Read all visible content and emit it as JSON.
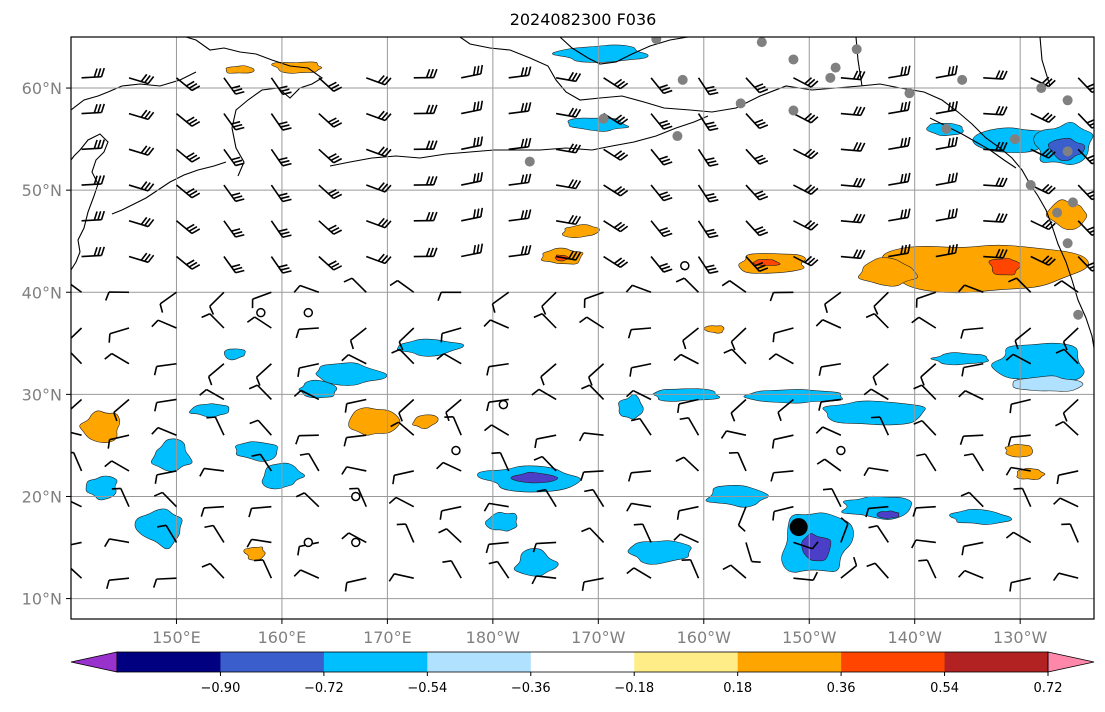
{
  "title": "2024082300 F036",
  "map": {
    "lat_range": [
      8,
      65
    ],
    "lon_range": [
      140,
      237
    ],
    "lat_ticks": [
      {
        "value": 10,
        "label": "10°N"
      },
      {
        "value": 20,
        "label": "20°N"
      },
      {
        "value": 30,
        "label": "30°N"
      },
      {
        "value": 40,
        "label": "40°N"
      },
      {
        "value": 50,
        "label": "50°N"
      },
      {
        "value": 60,
        "label": "60°N"
      }
    ],
    "lon_ticks": [
      {
        "value": 150,
        "label": "150°E"
      },
      {
        "value": 160,
        "label": "160°E"
      },
      {
        "value": 170,
        "label": "170°E"
      },
      {
        "value": 180,
        "label": "180°W"
      },
      {
        "value": 190,
        "label": "170°W"
      },
      {
        "value": 200,
        "label": "160°W"
      },
      {
        "value": 210,
        "label": "150°W"
      },
      {
        "value": 220,
        "label": "140°W"
      },
      {
        "value": 230,
        "label": "130°W"
      }
    ],
    "grid": true
  },
  "colorbar": {
    "colors": [
      "#9932cc",
      "#000080",
      "#3a5fcd",
      "#00bfff",
      "#b0e2ff",
      "#ffffff",
      "#ffee88",
      "#ffa500",
      "#ff4500",
      "#b22222",
      "#ff88aa"
    ],
    "labels": [
      "−0.90",
      "−0.72",
      "−0.54",
      "−0.36",
      "−0.18",
      "0.18",
      "0.36",
      "0.54",
      "0.72",
      "0.90"
    ]
  },
  "colors": {
    "blue": "#00bfff",
    "dark_blue": "#3a5fcd",
    "indigo": "#4b3fc8",
    "light_blue": "#b0e2ff",
    "orange": "#ffa500",
    "red_orange": "#ff4500",
    "yellow": "#ffee88",
    "grid": "#999999",
    "station": "#808080"
  },
  "blobs": [
    {
      "lon": 190.5,
      "lat": 63.3,
      "rx": 4.5,
      "ry": 0.9,
      "color": "blue"
    },
    {
      "lon": 161.5,
      "lat": 62.0,
      "rx": 2.5,
      "ry": 0.6,
      "color": "orange"
    },
    {
      "lon": 156.0,
      "lat": 61.8,
      "rx": 1.5,
      "ry": 0.4,
      "color": "orange"
    },
    {
      "lon": 190.0,
      "lat": 56.5,
      "rx": 3.0,
      "ry": 0.7,
      "color": "blue"
    },
    {
      "lon": 223.0,
      "lat": 56.0,
      "rx": 2.0,
      "ry": 0.6,
      "color": "blue"
    },
    {
      "lon": 230.0,
      "lat": 55.0,
      "rx": 4.0,
      "ry": 1.2,
      "color": "blue"
    },
    {
      "lon": 234.0,
      "lat": 54.5,
      "rx": 3.0,
      "ry": 2.0,
      "color": "blue"
    },
    {
      "lon": 234.3,
      "lat": 54.0,
      "rx": 1.8,
      "ry": 1.0,
      "color": "dark_blue"
    },
    {
      "lon": 188.5,
      "lat": 46.0,
      "rx": 2.0,
      "ry": 0.7,
      "color": "orange"
    },
    {
      "lon": 186.5,
      "lat": 43.5,
      "rx": 2.2,
      "ry": 0.9,
      "color": "orange"
    },
    {
      "lon": 186.5,
      "lat": 43.4,
      "rx": 0.7,
      "ry": 0.3,
      "color": "red_orange"
    },
    {
      "lon": 206.5,
      "lat": 42.8,
      "rx": 3.5,
      "ry": 1.0,
      "color": "orange"
    },
    {
      "lon": 206.0,
      "lat": 42.9,
      "rx": 1.2,
      "ry": 0.3,
      "color": "red_orange"
    },
    {
      "lon": 226.0,
      "lat": 42.5,
      "rx": 9.0,
      "ry": 2.5,
      "color": "orange"
    },
    {
      "lon": 228.5,
      "lat": 42.5,
      "rx": 1.5,
      "ry": 1.0,
      "color": "red_orange"
    },
    {
      "lon": 217.5,
      "lat": 42.0,
      "rx": 3.0,
      "ry": 1.3,
      "color": "orange"
    },
    {
      "lon": 234.5,
      "lat": 47.5,
      "rx": 2.0,
      "ry": 1.5,
      "color": "orange"
    },
    {
      "lon": 174.0,
      "lat": 34.6,
      "rx": 3.5,
      "ry": 0.8,
      "color": "blue"
    },
    {
      "lon": 166.0,
      "lat": 32.0,
      "rx": 3.5,
      "ry": 1.0,
      "color": "blue"
    },
    {
      "lon": 163.5,
      "lat": 30.5,
      "rx": 2.0,
      "ry": 0.8,
      "color": "blue"
    },
    {
      "lon": 155.5,
      "lat": 34.0,
      "rx": 1.0,
      "ry": 0.6,
      "color": "blue"
    },
    {
      "lon": 153.0,
      "lat": 28.5,
      "rx": 1.8,
      "ry": 0.7,
      "color": "blue"
    },
    {
      "lon": 168.5,
      "lat": 27.3,
      "rx": 2.5,
      "ry": 1.5,
      "color": "orange"
    },
    {
      "lon": 173.5,
      "lat": 27.3,
      "rx": 1.3,
      "ry": 0.7,
      "color": "orange"
    },
    {
      "lon": 143.0,
      "lat": 27.0,
      "rx": 2.0,
      "ry": 1.5,
      "color": "orange"
    },
    {
      "lon": 198.0,
      "lat": 30.0,
      "rx": 3.5,
      "ry": 0.7,
      "color": "blue"
    },
    {
      "lon": 208.0,
      "lat": 29.8,
      "rx": 5.0,
      "ry": 0.8,
      "color": "blue"
    },
    {
      "lon": 216.0,
      "lat": 28.2,
      "rx": 5.0,
      "ry": 1.2,
      "color": "blue"
    },
    {
      "lon": 224.5,
      "lat": 33.5,
      "rx": 3.0,
      "ry": 0.6,
      "color": "blue"
    },
    {
      "lon": 232.0,
      "lat": 33.0,
      "rx": 5.0,
      "ry": 2.0,
      "color": "blue"
    },
    {
      "lon": 232.5,
      "lat": 31.0,
      "rx": 3.0,
      "ry": 0.8,
      "color": "light_blue"
    },
    {
      "lon": 193.0,
      "lat": 28.7,
      "rx": 1.3,
      "ry": 1.2,
      "color": "blue"
    },
    {
      "lon": 149.5,
      "lat": 24.0,
      "rx": 2.0,
      "ry": 1.5,
      "color": "blue"
    },
    {
      "lon": 148.5,
      "lat": 17.0,
      "rx": 2.5,
      "ry": 2.0,
      "color": "blue"
    },
    {
      "lon": 143.0,
      "lat": 21.0,
      "rx": 1.5,
      "ry": 1.2,
      "color": "blue"
    },
    {
      "lon": 157.5,
      "lat": 24.5,
      "rx": 2.0,
      "ry": 1.0,
      "color": "blue"
    },
    {
      "lon": 160.0,
      "lat": 22.0,
      "rx": 2.0,
      "ry": 1.2,
      "color": "blue"
    },
    {
      "lon": 183.5,
      "lat": 21.8,
      "rx": 4.5,
      "ry": 1.3,
      "color": "blue"
    },
    {
      "lon": 184.0,
      "lat": 21.8,
      "rx": 2.5,
      "ry": 0.6,
      "color": "indigo"
    },
    {
      "lon": 181.0,
      "lat": 17.5,
      "rx": 1.5,
      "ry": 1.0,
      "color": "blue"
    },
    {
      "lon": 196.0,
      "lat": 14.5,
      "rx": 3.0,
      "ry": 1.2,
      "color": "blue"
    },
    {
      "lon": 184.0,
      "lat": 13.5,
      "rx": 2.0,
      "ry": 1.2,
      "color": "blue"
    },
    {
      "lon": 203.0,
      "lat": 20.0,
      "rx": 3.0,
      "ry": 1.0,
      "color": "blue"
    },
    {
      "lon": 210.5,
      "lat": 15.5,
      "rx": 3.5,
      "ry": 3.5,
      "color": "blue"
    },
    {
      "lon": 210.5,
      "lat": 15.0,
      "rx": 1.5,
      "ry": 1.5,
      "color": "indigo"
    },
    {
      "lon": 216.5,
      "lat": 19.0,
      "rx": 3.5,
      "ry": 1.2,
      "color": "blue"
    },
    {
      "lon": 217.5,
      "lat": 18.2,
      "rx": 1.0,
      "ry": 0.4,
      "color": "indigo"
    },
    {
      "lon": 226.0,
      "lat": 18.0,
      "rx": 3.0,
      "ry": 0.7,
      "color": "blue"
    },
    {
      "lon": 230.0,
      "lat": 24.5,
      "rx": 1.5,
      "ry": 0.6,
      "color": "orange"
    },
    {
      "lon": 231.0,
      "lat": 22.2,
      "rx": 1.3,
      "ry": 0.6,
      "color": "orange"
    },
    {
      "lon": 157.5,
      "lat": 14.5,
      "rx": 1.0,
      "ry": 0.7,
      "color": "orange"
    },
    {
      "lon": 201.0,
      "lat": 36.4,
      "rx": 1.0,
      "ry": 0.4,
      "color": "orange"
    }
  ],
  "stations": [
    {
      "lon": 195.5,
      "lat": 64.8
    },
    {
      "lon": 205.5,
      "lat": 64.5
    },
    {
      "lon": 208.5,
      "lat": 62.8
    },
    {
      "lon": 212.5,
      "lat": 62.0
    },
    {
      "lon": 214.5,
      "lat": 63.8
    },
    {
      "lon": 198.0,
      "lat": 60.8
    },
    {
      "lon": 212.0,
      "lat": 61.0
    },
    {
      "lon": 219.5,
      "lat": 59.5
    },
    {
      "lon": 224.5,
      "lat": 60.8
    },
    {
      "lon": 232.0,
      "lat": 60.0
    },
    {
      "lon": 234.5,
      "lat": 58.8
    },
    {
      "lon": 203.5,
      "lat": 58.5
    },
    {
      "lon": 208.5,
      "lat": 57.8
    },
    {
      "lon": 190.5,
      "lat": 57.0
    },
    {
      "lon": 197.5,
      "lat": 55.3
    },
    {
      "lon": 223.0,
      "lat": 56.0
    },
    {
      "lon": 229.5,
      "lat": 55.0
    },
    {
      "lon": 234.5,
      "lat": 53.8
    },
    {
      "lon": 231.0,
      "lat": 50.5
    },
    {
      "lon": 233.5,
      "lat": 47.8
    },
    {
      "lon": 234.5,
      "lat": 44.8
    },
    {
      "lon": 235.0,
      "lat": 48.8
    },
    {
      "lon": 183.5,
      "lat": 52.8
    },
    {
      "lon": 235.5,
      "lat": 37.8
    }
  ],
  "calm_stations": [
    {
      "lon": 198.2,
      "lat": 42.6
    },
    {
      "lon": 158.0,
      "lat": 38.0
    },
    {
      "lon": 162.5,
      "lat": 38.0
    },
    {
      "lon": 181.0,
      "lat": 29.0
    },
    {
      "lon": 176.5,
      "lat": 24.5
    },
    {
      "lon": 213.0,
      "lat": 24.5
    },
    {
      "lon": 167.0,
      "lat": 20.0
    },
    {
      "lon": 162.5,
      "lat": 15.5
    },
    {
      "lon": 167.0,
      "lat": 15.5
    }
  ],
  "storm_center": {
    "lon": 209.0,
    "lat": 17.0
  }
}
